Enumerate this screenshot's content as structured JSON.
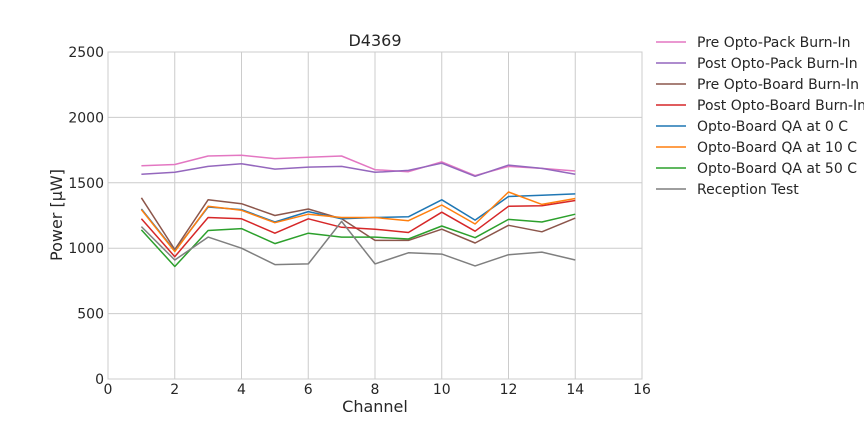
{
  "chart_data": {
    "type": "line",
    "title": "D4369",
    "xlabel": "Channel",
    "ylabel": "Power [μW]",
    "xlim": [
      0,
      16
    ],
    "ylim": [
      0,
      2500
    ],
    "xticks": [
      "0",
      "2",
      "4",
      "6",
      "8",
      "10",
      "12",
      "14",
      "16"
    ],
    "yticks": [
      "0",
      "500",
      "1000",
      "1500",
      "2000",
      "2500"
    ],
    "grid": true,
    "legend_position": "outside-right",
    "x": [
      1,
      2,
      3,
      4,
      5,
      6,
      7,
      8,
      9,
      10,
      11,
      12,
      13,
      14
    ],
    "series": [
      {
        "name": "Pre Opto-Pack Burn-In",
        "color": "#e377c2",
        "values": [
          1630,
          1640,
          1705,
          1710,
          1685,
          1695,
          1705,
          1600,
          1585,
          1660,
          1555,
          1625,
          1610,
          1590
        ]
      },
      {
        "name": "Post Opto-Pack Burn-In",
        "color": "#9467bd",
        "values": [
          1565,
          1580,
          1625,
          1645,
          1605,
          1620,
          1625,
          1580,
          1595,
          1650,
          1550,
          1635,
          1610,
          1565
        ]
      },
      {
        "name": "Pre Opto-Board Burn-In",
        "color": "#8c564b",
        "values": [
          1385,
          990,
          1370,
          1340,
          1250,
          1300,
          1225,
          1060,
          1060,
          1145,
          1040,
          1175,
          1125,
          1230
        ]
      },
      {
        "name": "Post Opto-Board Burn-In",
        "color": "#d62728",
        "values": [
          1225,
          935,
          1235,
          1225,
          1115,
          1225,
          1160,
          1145,
          1120,
          1275,
          1130,
          1320,
          1325,
          1365
        ]
      },
      {
        "name": "Opto-Board QA at 0 C",
        "color": "#1f77b4",
        "values": [
          1300,
          980,
          1315,
          1295,
          1200,
          1280,
          1225,
          1235,
          1240,
          1370,
          1215,
          1395,
          1405,
          1415
        ]
      },
      {
        "name": "Opto-Board QA at 10 C",
        "color": "#ff7f0e",
        "values": [
          1295,
          975,
          1320,
          1290,
          1195,
          1260,
          1235,
          1235,
          1210,
          1330,
          1185,
          1430,
          1335,
          1380
        ]
      },
      {
        "name": "Opto-Board QA at 50 C",
        "color": "#2ca02c",
        "values": [
          1140,
          860,
          1135,
          1150,
          1035,
          1115,
          1085,
          1085,
          1070,
          1170,
          1080,
          1220,
          1200,
          1260
        ]
      },
      {
        "name": "Reception Test",
        "color": "#7f7f7f",
        "values": [
          1165,
          910,
          1085,
          1000,
          875,
          880,
          1205,
          880,
          965,
          955,
          865,
          950,
          970,
          910
        ]
      }
    ]
  }
}
